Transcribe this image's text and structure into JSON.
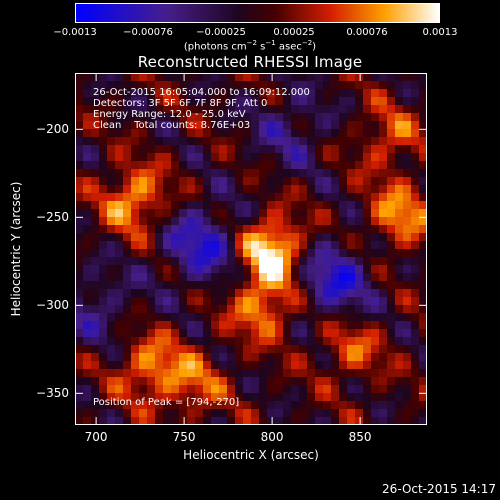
{
  "colorbar": {
    "ticks": [
      "−0.0013",
      "−0.00076",
      "−0.00025",
      "0.00025",
      "0.00076",
      "0.0013"
    ],
    "units_text": "(photons cm",
    "units_sup1": "−2",
    "units_mid": " s",
    "units_sup2": "−1",
    "units_mid2": " asec",
    "units_sup3": "−2",
    "units_end": ")"
  },
  "info": {
    "line1": "26-Oct-2015 16:05:04.000 to 16:09:12.000",
    "line2": "Detectors: 3F 5F 6F 7F 8F 9F, Att 0",
    "line3": "Energy Range: 12.0 - 25.0 keV",
    "line4": "Clean    Total counts: 8.76E+03"
  },
  "peak": "Position of Peak = [794,-270]",
  "timestamp": "26-Oct-2015 14:17",
  "chart_data": {
    "type": "heatmap",
    "title": "Reconstructed RHESSI Image",
    "xlabel": "Heliocentric X (arcsec)",
    "ylabel": "Heliocentric Y (arcsec)",
    "xlim": [
      688,
      888
    ],
    "ylim": [
      -368,
      -168
    ],
    "x_ticks": [
      "700",
      "750",
      "800",
      "850"
    ],
    "y_ticks": [
      "−200",
      "−250",
      "−300",
      "−350"
    ],
    "color_range": [
      -0.0013,
      0.0013
    ],
    "colormap": "blue-purple-red-yellow-white",
    "peak": [
      794,
      -270
    ],
    "sources": [
      {
        "x": 722,
        "y": -240,
        "amp": 0.00095
      },
      {
        "x": 800,
        "y": -268,
        "amp": 0.0013
      },
      {
        "x": 795,
        "y": -300,
        "amp": 0.0009
      },
      {
        "x": 730,
        "y": -335,
        "amp": 0.0008
      },
      {
        "x": 755,
        "y": -345,
        "amp": 0.0006
      },
      {
        "x": 872,
        "y": -250,
        "amp": 0.00085
      },
      {
        "x": 866,
        "y": -205,
        "amp": 0.0006
      },
      {
        "x": 845,
        "y": -325,
        "amp": 0.0006
      }
    ],
    "minima": [
      {
        "x": 760,
        "y": -265,
        "amp": -0.0009
      },
      {
        "x": 835,
        "y": -285,
        "amp": -0.0009
      },
      {
        "x": 810,
        "y": -200,
        "amp": -0.0005
      },
      {
        "x": 700,
        "y": -300,
        "amp": -0.0005
      }
    ]
  },
  "colors": {
    "background": "#000000",
    "axes": "#ffffff"
  }
}
